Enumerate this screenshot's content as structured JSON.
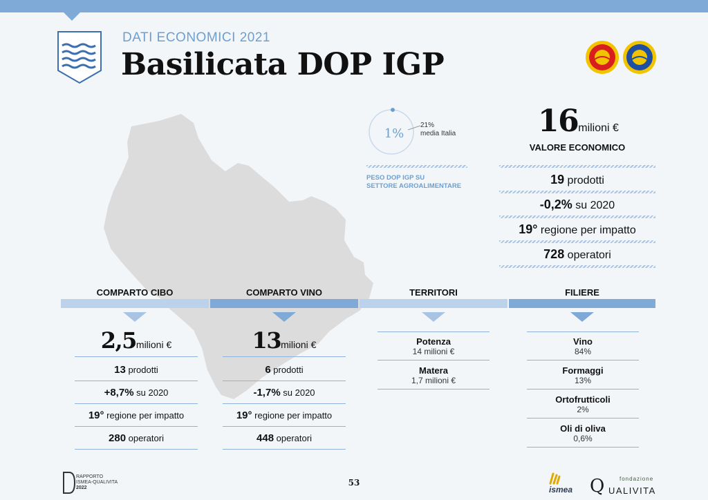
{
  "header": {
    "subtitle": "DATI ECONOMICI 2021",
    "title": "Basilicata DOP IGP"
  },
  "share": {
    "value": "1%",
    "value_fraction": 0.01,
    "italy_value": "21%",
    "italy_label": "media Italia",
    "label_line1": "PESO DOP IGP SU",
    "label_line2": "SETTORE AGROALIMENTARE"
  },
  "summary": {
    "value": "16",
    "unit": "milioni €",
    "label": "VALORE ECONOMICO",
    "rows": [
      {
        "bold": "19",
        "text": " prodotti"
      },
      {
        "bold": "-0,2%",
        "text": " su 2020"
      },
      {
        "bold": "19°",
        "text": " regione per impatto"
      },
      {
        "bold": "728",
        "text": " operatori"
      }
    ]
  },
  "sections": {
    "cibo": {
      "label": "COMPARTO CIBO",
      "value": "2,5",
      "unit": "milioni €",
      "rows": [
        {
          "bold": "13",
          "text": " prodotti"
        },
        {
          "bold": "+8,7%",
          "text": " su 2020"
        },
        {
          "bold": "19°",
          "text": " regione per impatto"
        },
        {
          "bold": "280",
          "text": " operatori"
        }
      ]
    },
    "vino": {
      "label": "COMPARTO VINO",
      "value": "13",
      "unit": "milioni €",
      "rows": [
        {
          "bold": "6",
          "text": " prodotti"
        },
        {
          "bold": "-1,7%",
          "text": " su 2020"
        },
        {
          "bold": "19°",
          "text": " regione per impatto"
        },
        {
          "bold": "448",
          "text": " operatori"
        }
      ]
    },
    "territori": {
      "label": "TERRITORI",
      "items": [
        {
          "name": "Potenza",
          "value": "14 milioni €"
        },
        {
          "name": "Matera",
          "value": "1,7 milioni €"
        }
      ]
    },
    "filiere": {
      "label": "FILIERE",
      "items": [
        {
          "name": "Vino",
          "value": "84%"
        },
        {
          "name": "Formaggi",
          "value": "13%"
        },
        {
          "name": "Ortofrutticoli",
          "value": "2%"
        },
        {
          "name": "Oli di oliva",
          "value": "0,6%"
        }
      ]
    }
  },
  "footer": {
    "page_number": "53",
    "rapporto_line1": "RAPPORTO",
    "rapporto_line2": "ISMEA-QUALIVITA",
    "rapporto_line3": "2022",
    "ismea": "ismea",
    "qualivita_small": "fondazione",
    "qualivita_q": "Q",
    "qualivita_rest": "UALIVITA"
  },
  "colors": {
    "accent": "#7fa9d6",
    "accent_dark": "#6c9fcf",
    "map_gray": "#dcdcdc"
  },
  "icons": {
    "crest": "basilicata-crest-icon",
    "dop": "dop-seal-icon",
    "igp": "igp-seal-icon"
  }
}
